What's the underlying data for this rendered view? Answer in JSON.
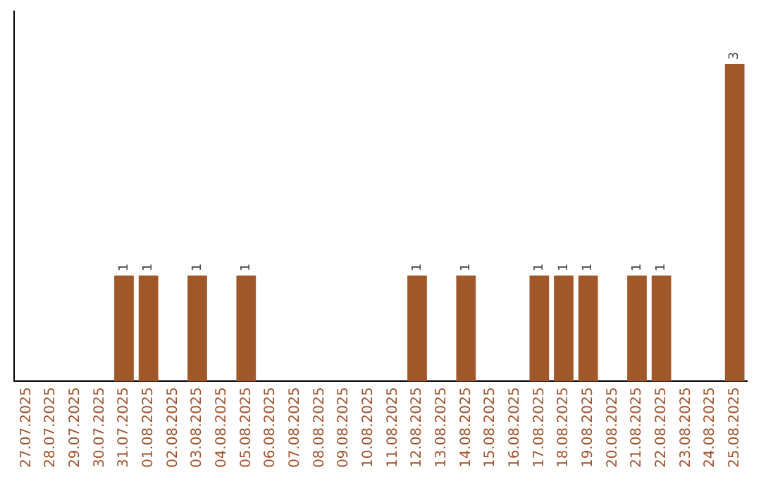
{
  "chart_data": {
    "type": "bar",
    "categories": [
      "27.07.2025",
      "28.07.2025",
      "29.07.2025",
      "30.07.2025",
      "31.07.2025",
      "01.08.2025",
      "02.08.2025",
      "03.08.2025",
      "04.08.2025",
      "05.08.2025",
      "06.08.2025",
      "07.08.2025",
      "08.08.2025",
      "09.08.2025",
      "10.08.2025",
      "11.08.2025",
      "12.08.2025",
      "13.08.2025",
      "14.08.2025",
      "15.08.2025",
      "16.08.2025",
      "17.08.2025",
      "18.08.2025",
      "19.08.2025",
      "20.08.2025",
      "21.08.2025",
      "22.08.2025",
      "23.08.2025",
      "24.08.2025",
      "25.08.2025"
    ],
    "values": [
      0,
      0,
      0,
      0,
      1,
      1,
      0,
      1,
      0,
      1,
      0,
      0,
      0,
      0,
      0,
      0,
      1,
      0,
      1,
      0,
      0,
      1,
      1,
      1,
      0,
      1,
      1,
      0,
      0,
      3
    ],
    "value_labels": [
      null,
      null,
      null,
      null,
      "1",
      "1",
      null,
      "1",
      null,
      "1",
      null,
      null,
      null,
      null,
      null,
      null,
      "1",
      null,
      "1",
      null,
      null,
      "1",
      "1",
      "1",
      null,
      "1",
      "1",
      null,
      null,
      "3"
    ],
    "color": "#a0582a",
    "tick_labels": "x",
    "grid": false,
    "legend": false
  }
}
